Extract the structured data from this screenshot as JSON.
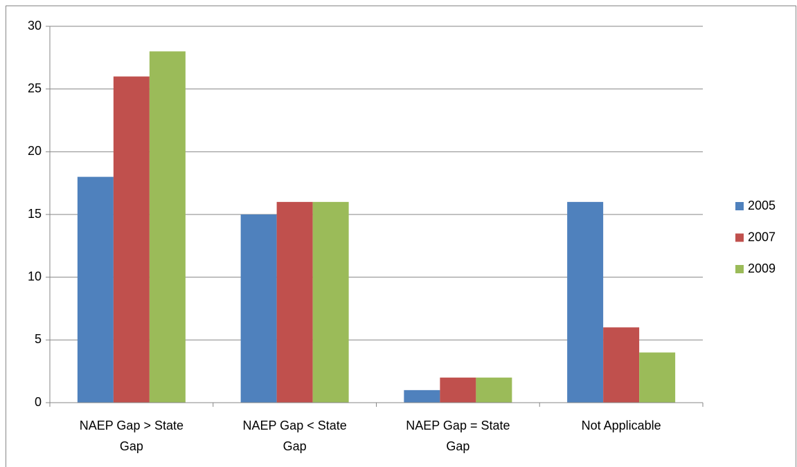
{
  "chart_data": {
    "type": "bar",
    "categories": [
      "NAEP Gap > State Gap",
      "NAEP Gap < State Gap",
      "NAEP Gap = State Gap",
      "Not Applicable"
    ],
    "series": [
      {
        "name": "2005",
        "color": "#4f81bd",
        "values": [
          18,
          15,
          1,
          16
        ]
      },
      {
        "name": "2007",
        "color": "#c0504d",
        "values": [
          26,
          16,
          2,
          6
        ]
      },
      {
        "name": "2009",
        "color": "#9bbb59",
        "values": [
          28,
          16,
          2,
          4
        ]
      }
    ],
    "ylim": [
      0,
      30
    ],
    "yticks": [
      0,
      5,
      10,
      15,
      20,
      25,
      30
    ],
    "grid": true,
    "legend": "right"
  }
}
